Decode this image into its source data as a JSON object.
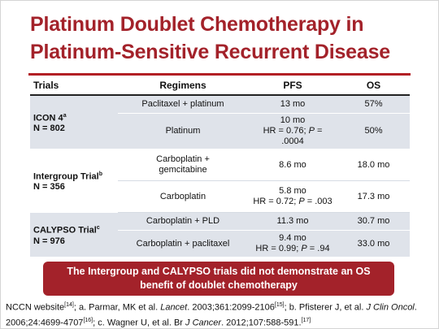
{
  "title": {
    "line1": "Platinum Doublet Chemotherapy in",
    "line2": "Platinum-Sensitive Recurrent Disease"
  },
  "table": {
    "headers": {
      "trials": "Trials",
      "regimens": "Regimens",
      "pfs": "PFS",
      "os": "OS"
    },
    "groups": [
      {
        "trial_name": "ICON 4",
        "trial_sup": "a",
        "trial_n": "N = 802",
        "rows": [
          {
            "regimen": "Paclitaxel + platinum",
            "pfs": "13 mo",
            "pfs_hr": "",
            "pfs_p": "",
            "os": "57%"
          },
          {
            "regimen": "Platinum",
            "pfs": "10 mo",
            "pfs_hr": "HR = 0.76;",
            "pfs_p": ".0004",
            "os": "50%"
          }
        ]
      },
      {
        "trial_name": "Intergroup Trial",
        "trial_sup": "b",
        "trial_n": "N = 356",
        "rows": [
          {
            "regimen_line1": "Carboplatin +",
            "regimen_line2": "gemcitabine",
            "pfs": "8.6 mo",
            "pfs_hr": "",
            "pfs_p": "",
            "os": "18.0 mo"
          },
          {
            "regimen": "Carboplatin",
            "pfs": "5.8 mo",
            "pfs_hr": "HR = 0.72;",
            "pfs_p": ".003",
            "os": "17.3 mo"
          }
        ]
      },
      {
        "trial_name": "CALYPSO Trial",
        "trial_sup": "c",
        "trial_n": "N = 976",
        "rows": [
          {
            "regimen": "Carboplatin + PLD",
            "pfs": "11.3 mo",
            "pfs_hr": "",
            "pfs_p": "",
            "os": "30.7 mo"
          },
          {
            "regimen": "Carboplatin + paclitaxel",
            "pfs": "9.4 mo",
            "pfs_hr": "HR = 0.99;",
            "pfs_p": ".94",
            "os": "33.0 mo"
          }
        ]
      }
    ],
    "p_label": "P",
    "p_eq": " = "
  },
  "banner": {
    "line1": "The Intergroup and CALYPSO trials did not demonstrate an OS",
    "line2": "benefit of doublet chemotherapy"
  },
  "references": {
    "r1": "NCCN website",
    "r1_sup": "[14]",
    "r2": "; a. Parmar, MK et al. ",
    "r2_journal": "Lancet",
    "r2_rest": ". 2003;361:2099-2106",
    "r2_sup": "[15]",
    "r3": "; b. Pfisterer J, et al. ",
    "r3_journal": "J Clin Oncol",
    "r3_rest": ". 2006;24:4699-4707",
    "r3_sup": "[16]",
    "r4": "; c. Wagner U, et al. Br ",
    "r4_journal": "J Cancer",
    "r4_rest": ". 2012;107:588-591.",
    "r4_sup": "[17]"
  },
  "colors": {
    "title": "#a3222a",
    "banner_bg": "#a3222a",
    "row_shade": "#dfe3ea"
  }
}
